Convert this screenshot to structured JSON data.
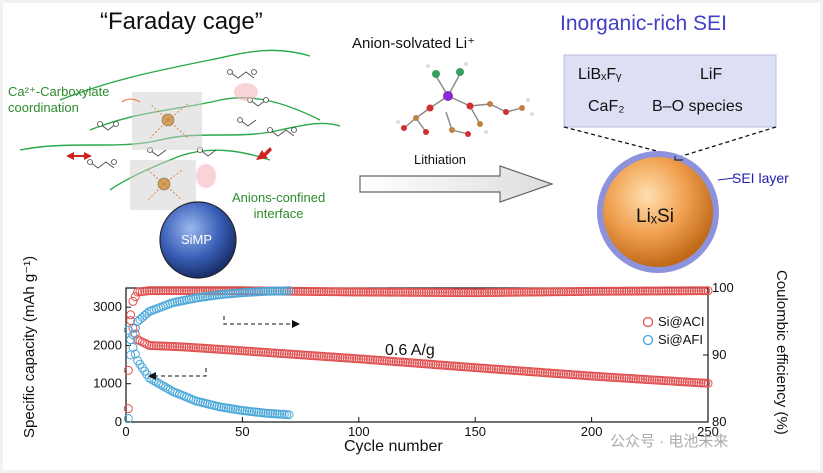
{
  "title_left": "“Faraday cage”",
  "label_ca_coord_line1": "Ca²⁺-Carboxylate",
  "label_ca_coord_line2": "coordination",
  "label_anions_line1": "Anions-confined",
  "label_anions_line2": "interface",
  "label_simp": "SiMP",
  "label_anion_solvated": "Anion-solvated Li⁺",
  "label_lithiation": "Lithiation",
  "title_right": "Inorganic-rich SEI",
  "sei_species": {
    "s1": "LiBₓFᵧ",
    "s2": "LiF",
    "s3": "CaF₂",
    "s4": "B–O species"
  },
  "label_sei_layer": "SEI layer",
  "label_lixsi": "LiₓSi",
  "chart_data": {
    "type": "scatter",
    "xlabel": "Cycle number",
    "ylabel_left": "Specific capacity (mAh g⁻¹)",
    "ylabel_right": "Coulombic efficiency (%)",
    "xlim": [
      0,
      250
    ],
    "ylim_left": [
      0,
      3500
    ],
    "ylim_right": [
      80,
      100
    ],
    "x_ticks": [
      0,
      50,
      100,
      150,
      200,
      250
    ],
    "y_ticks_left": [
      0,
      1000,
      2000,
      3000
    ],
    "y_ticks_right": [
      80,
      90,
      100
    ],
    "annotation": "0.6 A/g",
    "legend_position": "right",
    "series": [
      {
        "name": "Si@ACI",
        "color": "#e05050",
        "capacity_points": [
          [
            1,
            1350
          ],
          [
            2,
            2650
          ],
          [
            3,
            2450
          ],
          [
            5,
            2150
          ],
          [
            10,
            2000
          ],
          [
            25,
            1960
          ],
          [
            50,
            1860
          ],
          [
            100,
            1650
          ],
          [
            150,
            1420
          ],
          [
            200,
            1200
          ],
          [
            250,
            1010
          ]
        ],
        "ce_points": [
          [
            1,
            82
          ],
          [
            2,
            96
          ],
          [
            3,
            98
          ],
          [
            5,
            99.4
          ],
          [
            10,
            99.6
          ],
          [
            50,
            99.6
          ],
          [
            100,
            99.4
          ],
          [
            150,
            99.3
          ],
          [
            200,
            99.5
          ],
          [
            250,
            99.6
          ]
        ]
      },
      {
        "name": "Si@AFI",
        "color": "#4aa8d8",
        "capacity_points": [
          [
            1,
            2400
          ],
          [
            2,
            2150
          ],
          [
            3,
            1950
          ],
          [
            5,
            1600
          ],
          [
            10,
            1150
          ],
          [
            20,
            800
          ],
          [
            30,
            550
          ],
          [
            40,
            400
          ],
          [
            50,
            300
          ],
          [
            60,
            230
          ],
          [
            70,
            190
          ]
        ],
        "ce_points": [
          [
            1,
            80.5
          ],
          [
            2,
            90
          ],
          [
            3,
            93
          ],
          [
            5,
            95
          ],
          [
            10,
            96.5
          ],
          [
            20,
            97.8
          ],
          [
            30,
            98.5
          ],
          [
            40,
            99
          ],
          [
            50,
            99.3
          ],
          [
            60,
            99.5
          ],
          [
            70,
            99.6
          ]
        ]
      }
    ]
  },
  "watermark": "公众号 · 电池未来",
  "axis_lines": {
    "cap_arrow": "capacity",
    "ce_arrow": "CE"
  }
}
